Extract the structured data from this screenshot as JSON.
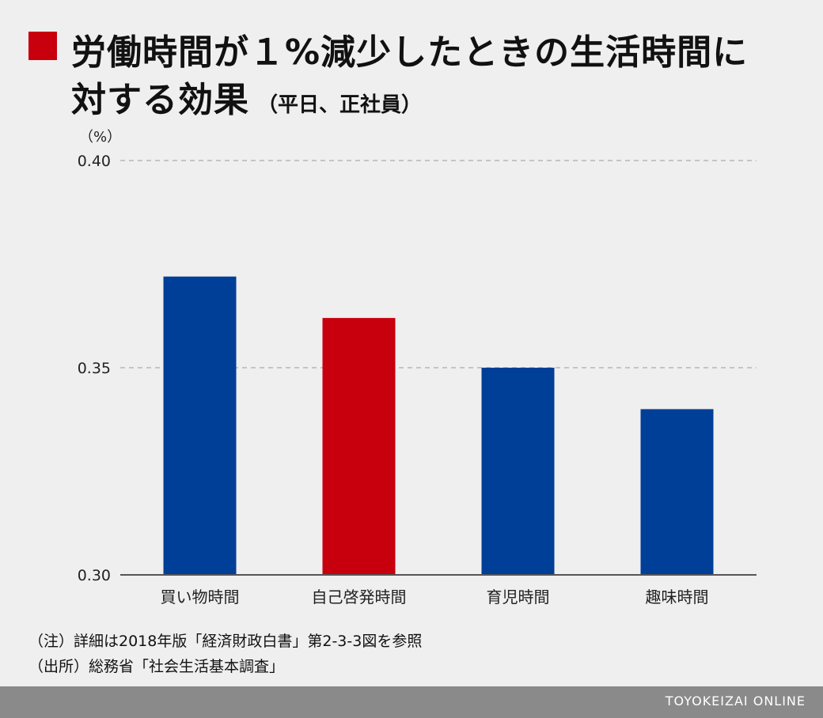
{
  "title": {
    "line1": "労働時間が１%減少したときの生活時間に",
    "line2_main": "対する効果",
    "line2_sub": "（平日、正社員）"
  },
  "chart_data": {
    "type": "bar",
    "unit_label": "（%）",
    "categories": [
      "買い物時間",
      "自己啓発時間",
      "育児時間",
      "趣味時間"
    ],
    "values": [
      0.372,
      0.362,
      0.35,
      0.34
    ],
    "colors": [
      "#003f98",
      "#c8000e",
      "#003f98",
      "#003f98"
    ],
    "ylim": [
      0.3,
      0.4
    ],
    "yticks": [
      "0.30",
      "0.35",
      "0.40"
    ],
    "grid": true
  },
  "notes": [
    "（注）詳細は2018年版「経済財政白書」第2-3-3図を参照",
    "（出所）総務省「社会生活基本調査」"
  ],
  "footer": {
    "brand": "TOYOKEIZAI ONLINE"
  }
}
